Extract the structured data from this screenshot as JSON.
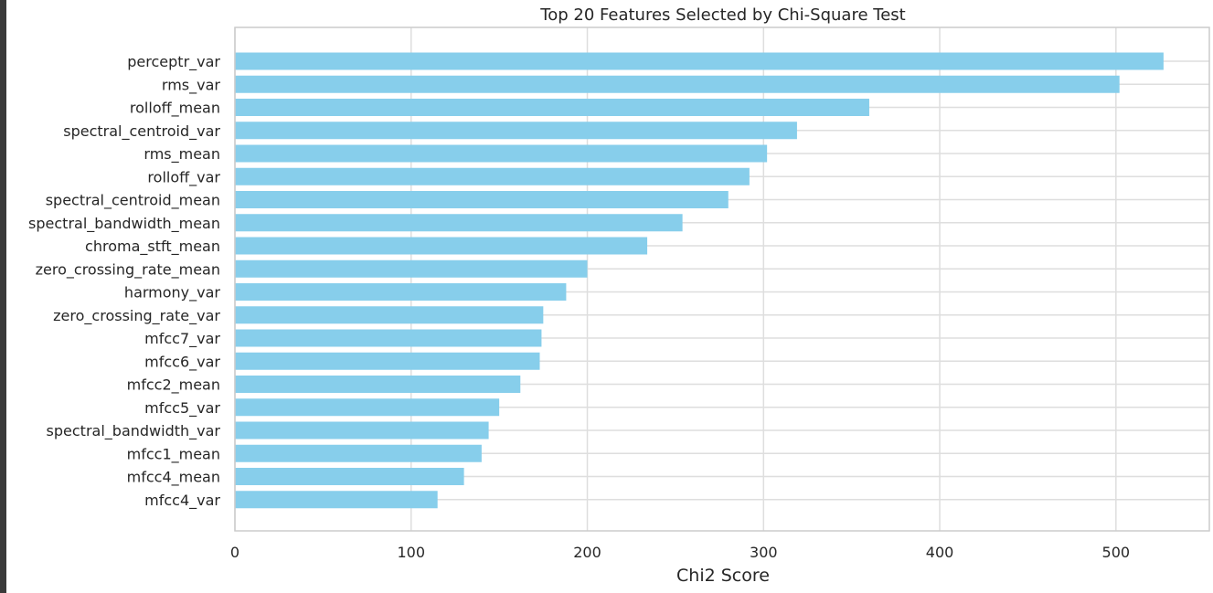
{
  "chart_data": {
    "type": "bar",
    "orientation": "horizontal",
    "title": "Top 20 Features Selected by Chi-Square Test",
    "xlabel": "Chi2 Score",
    "ylabel": "",
    "xlim": [
      0,
      553
    ],
    "xticks": [
      0,
      100,
      200,
      300,
      400,
      500
    ],
    "grid": true,
    "bar_color": "#87CEEB",
    "categories": [
      "perceptr_var",
      "rms_var",
      "rolloff_mean",
      "spectral_centroid_var",
      "rms_mean",
      "rolloff_var",
      "spectral_centroid_mean",
      "spectral_bandwidth_mean",
      "chroma_stft_mean",
      "zero_crossing_rate_mean",
      "harmony_var",
      "zero_crossing_rate_var",
      "mfcc7_var",
      "mfcc6_var",
      "mfcc2_mean",
      "mfcc5_var",
      "spectral_bandwidth_var",
      "mfcc1_mean",
      "mfcc4_mean",
      "mfcc4_var"
    ],
    "values": [
      527,
      502,
      360,
      319,
      302,
      292,
      280,
      254,
      234,
      200,
      188,
      175,
      174,
      173,
      162,
      150,
      144,
      140,
      130,
      115
    ]
  }
}
